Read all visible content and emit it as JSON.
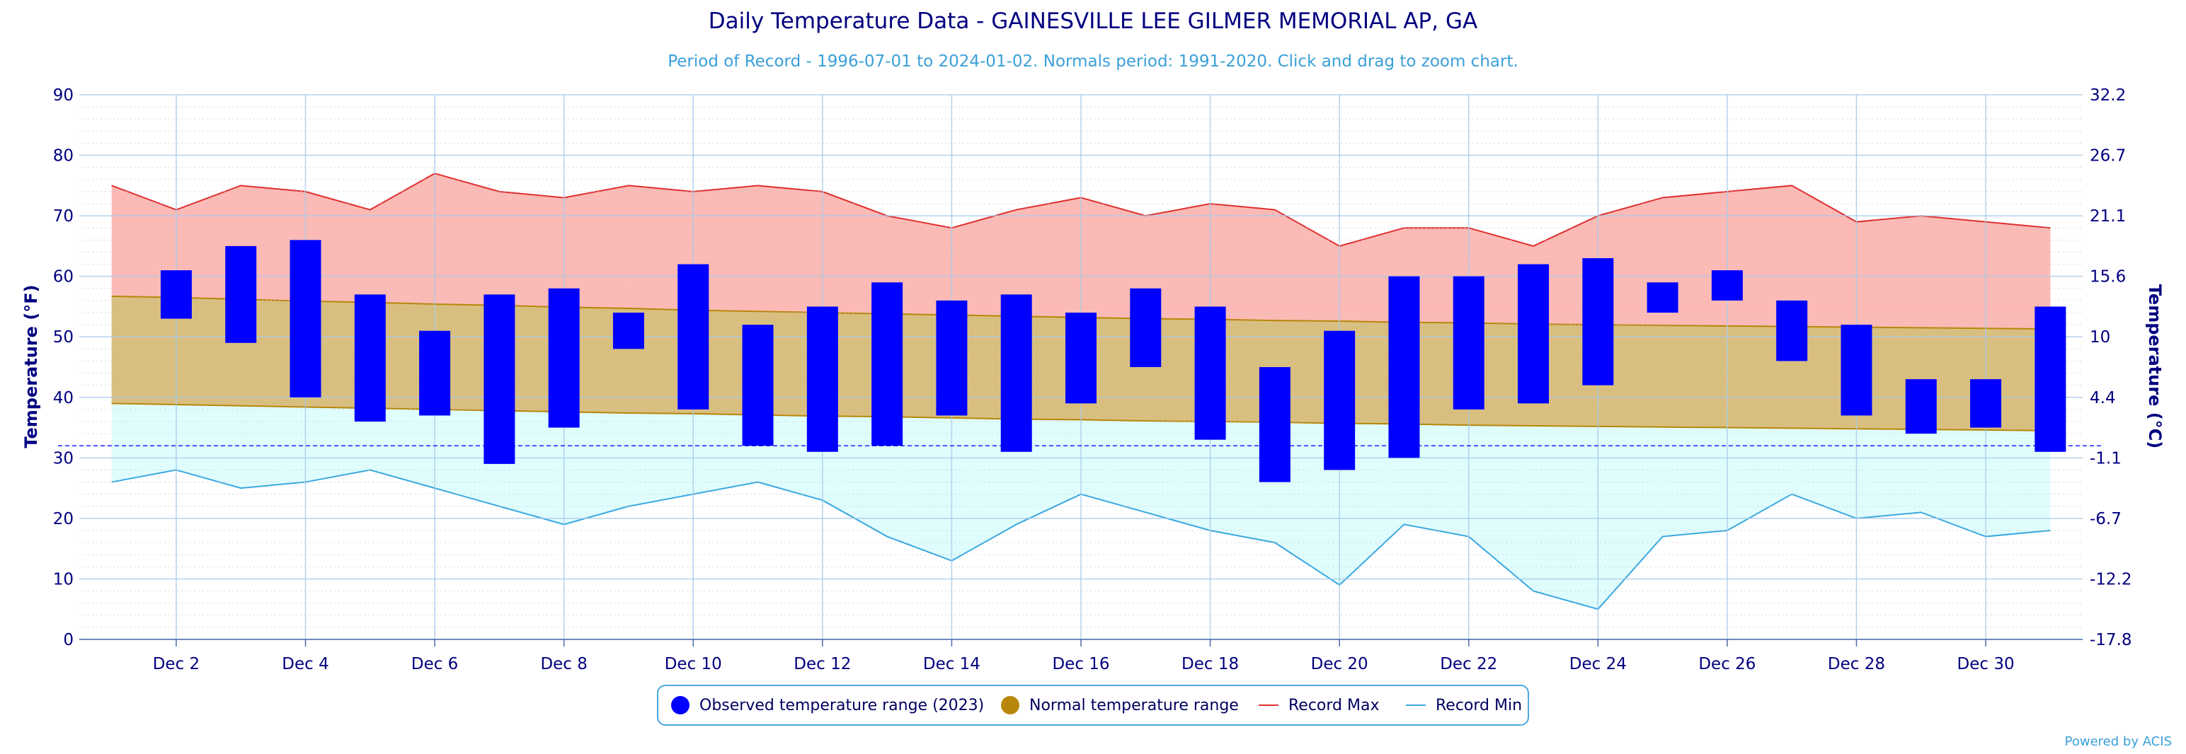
{
  "title": "Daily Temperature Data - GAINESVILLE LEE GILMER MEMORIAL AP, GA",
  "subtitle": "Period of Record - 1996-07-01 to 2024-01-02. Normals period: 1991-2020. Click and drag to zoom chart.",
  "credit": "Powered by ACIS",
  "colors": {
    "observed": "#0000ff",
    "normal_fill": "#d9bf7f",
    "normal_line": "#b8860b",
    "record_max_fill": "#fbbab5",
    "record_max_line": "#e03030",
    "record_min_fill": "#dffdfd",
    "record_min_line": "#3aa8e0",
    "grid": "#a8cbea",
    "axis_text": "#000080"
  },
  "legend": {
    "observed": "Observed temperature range (2023)",
    "normal": "Normal temperature range",
    "record_max": "Record Max",
    "record_min": "Record Min"
  },
  "chart_data": {
    "type": "bar",
    "title": "Daily Temperature Data - GAINESVILLE LEE GILMER MEMORIAL AP, GA",
    "ylabel": "Temperature (°F)",
    "ylabel_right": "Temperature (°C)",
    "ylim": [
      0,
      90
    ],
    "yticks": [
      0,
      10,
      20,
      30,
      40,
      50,
      60,
      70,
      80,
      90
    ],
    "yticks_right": [
      "-17.8",
      "-12.2",
      "-6.7",
      "-1.1",
      "4.4",
      "10",
      "15.6",
      "21.1",
      "26.7",
      "32.2"
    ],
    "freezing_line": 32,
    "x": [
      1,
      2,
      3,
      4,
      5,
      6,
      7,
      8,
      9,
      10,
      11,
      12,
      13,
      14,
      15,
      16,
      17,
      18,
      19,
      20,
      21,
      22,
      23,
      24,
      25,
      26,
      27,
      28,
      29,
      30,
      31
    ],
    "xtick_labels": [
      "Dec 2",
      "Dec 4",
      "Dec 6",
      "Dec 8",
      "Dec 10",
      "Dec 12",
      "Dec 14",
      "Dec 16",
      "Dec 18",
      "Dec 20",
      "Dec 22",
      "Dec 24",
      "Dec 26",
      "Dec 28",
      "Dec 30"
    ],
    "xtick_days": [
      2,
      4,
      6,
      8,
      10,
      12,
      14,
      16,
      18,
      20,
      22,
      24,
      26,
      28,
      30
    ],
    "grid": true,
    "legend_position": "bottom",
    "series": [
      {
        "name": "Observed temperature range (2023)",
        "type": "range_bar",
        "low": [
          null,
          53,
          49,
          40,
          36,
          37,
          29,
          35,
          48,
          38,
          32,
          31,
          32,
          37,
          31,
          39,
          45,
          33,
          26,
          28,
          30,
          38,
          39,
          42,
          54,
          56,
          46,
          37,
          34,
          35,
          31
        ],
        "high": [
          null,
          61,
          65,
          66,
          57,
          51,
          57,
          58,
          54,
          62,
          52,
          55,
          59,
          56,
          57,
          54,
          58,
          55,
          45,
          51,
          60,
          60,
          62,
          63,
          59,
          61,
          56,
          52,
          43,
          43,
          55
        ]
      },
      {
        "name": "Normal temperature range",
        "type": "area_range",
        "low": [
          39.0,
          38.8,
          38.6,
          38.4,
          38.2,
          38.0,
          37.8,
          37.6,
          37.4,
          37.3,
          37.1,
          36.9,
          36.8,
          36.6,
          36.4,
          36.3,
          36.1,
          36.0,
          35.9,
          35.7,
          35.6,
          35.4,
          35.3,
          35.2,
          35.1,
          35.0,
          34.9,
          34.8,
          34.7,
          34.6,
          34.5
        ],
        "high": [
          56.7,
          56.5,
          56.2,
          55.9,
          55.7,
          55.4,
          55.2,
          54.9,
          54.7,
          54.4,
          54.2,
          54.0,
          53.8,
          53.6,
          53.4,
          53.2,
          53.0,
          52.9,
          52.7,
          52.6,
          52.4,
          52.3,
          52.1,
          52.0,
          51.9,
          51.8,
          51.7,
          51.6,
          51.5,
          51.4,
          51.3
        ]
      },
      {
        "name": "Record Max",
        "type": "line_area",
        "values": [
          75,
          71,
          75,
          74,
          71,
          77,
          74,
          73,
          75,
          74,
          75,
          74,
          70,
          68,
          71,
          73,
          70,
          72,
          71,
          65,
          68,
          68,
          65,
          70,
          73,
          74,
          75,
          69,
          70,
          69,
          68
        ]
      },
      {
        "name": "Record Min",
        "type": "line_area",
        "values": [
          26,
          28,
          25,
          26,
          28,
          25,
          22,
          19,
          22,
          24,
          26,
          23,
          17,
          13,
          19,
          24,
          21,
          18,
          16,
          9,
          19,
          17,
          8,
          5,
          17,
          18,
          24,
          20,
          21,
          17,
          18
        ]
      }
    ]
  }
}
